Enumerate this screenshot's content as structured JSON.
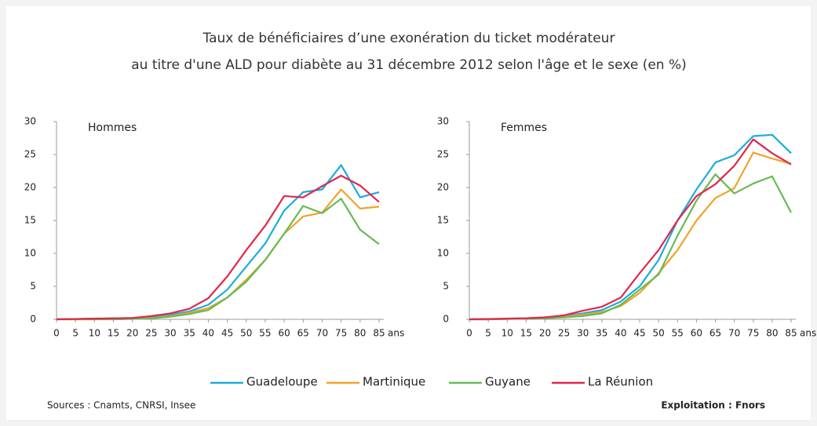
{
  "title": [
    "Taux de bénéficiaires d’une exonération du ticket modérateur",
    "au titre d'une ALD pour diabète au 31 décembre 2012 selon l'âge et le sexe (en %)"
  ],
  "sources": "Sources : Cnamts, CNRSI, Insee",
  "credit": "Exploitation : Fnors",
  "chart_data": [
    {
      "type": "line",
      "title": "Hommes",
      "xlabel": "ans",
      "x": [
        0,
        5,
        10,
        15,
        20,
        25,
        30,
        35,
        40,
        45,
        50,
        55,
        60,
        65,
        70,
        75,
        80,
        85
      ],
      "xlim": [
        0,
        85
      ],
      "xticks": [
        0,
        5,
        10,
        15,
        20,
        25,
        30,
        35,
        40,
        45,
        50,
        55,
        60,
        65,
        70,
        75,
        80,
        85
      ],
      "ylim": [
        0,
        30
      ],
      "yticks": [
        0,
        5,
        10,
        15,
        20,
        25,
        30
      ],
      "series": [
        {
          "name": "Guadeloupe",
          "color": "#19ade0",
          "values": [
            0,
            0.05,
            0.1,
            0.15,
            0.2,
            0.4,
            0.7,
            1.2,
            2.2,
            4.5,
            8,
            11.5,
            16.5,
            19.3,
            19.7,
            23.4,
            18.5,
            19.3
          ]
        },
        {
          "name": "Martinique",
          "color": "#f2a22a",
          "values": [
            0,
            0,
            0,
            0.05,
            0.1,
            0.2,
            0.5,
            1,
            1.7,
            3.3,
            6,
            9,
            13,
            15.6,
            16.2,
            19.7,
            16.8,
            17.1
          ]
        },
        {
          "name": "Guyane",
          "color": "#66bb55",
          "values": [
            0,
            0,
            0,
            0,
            0.05,
            0.15,
            0.4,
            0.8,
            1.4,
            3.3,
            5.7,
            9,
            13,
            17.2,
            16.1,
            18.3,
            13.6,
            11.4
          ]
        },
        {
          "name": "La Réunion",
          "color": "#e2264d",
          "values": [
            0,
            0.05,
            0.1,
            0.15,
            0.2,
            0.5,
            0.9,
            1.6,
            3.2,
            6.5,
            10.5,
            14.2,
            18.7,
            18.5,
            20.2,
            21.8,
            20.3,
            17.8
          ]
        }
      ]
    },
    {
      "type": "line",
      "title": "Femmes",
      "xlabel": "ans",
      "x": [
        0,
        5,
        10,
        15,
        20,
        25,
        30,
        35,
        40,
        45,
        50,
        55,
        60,
        65,
        70,
        75,
        80,
        85
      ],
      "xlim": [
        0,
        85
      ],
      "xticks": [
        0,
        5,
        10,
        15,
        20,
        25,
        30,
        35,
        40,
        45,
        50,
        55,
        60,
        65,
        70,
        75,
        80,
        85
      ],
      "ylim": [
        0,
        30
      ],
      "yticks": [
        0,
        5,
        10,
        15,
        20,
        25,
        30
      ],
      "series": [
        {
          "name": "Guadeloupe",
          "color": "#19ade0",
          "values": [
            0,
            0,
            0.1,
            0.15,
            0.3,
            0.5,
            0.9,
            1.4,
            2.7,
            5,
            9,
            15,
            19.7,
            23.8,
            24.9,
            27.8,
            28,
            25.2
          ]
        },
        {
          "name": "Martinique",
          "color": "#f2a22a",
          "values": [
            0,
            0,
            0.05,
            0.1,
            0.2,
            0.4,
            0.7,
            1.1,
            2,
            4,
            7,
            10.5,
            15,
            18.4,
            19.9,
            25.3,
            24.4,
            23.6
          ]
        },
        {
          "name": "Guyane",
          "color": "#66bb55",
          "values": [
            0,
            0,
            0.05,
            0.1,
            0.15,
            0.3,
            0.5,
            0.9,
            2.2,
            4.5,
            6.8,
            12.7,
            18,
            22,
            19.1,
            20.6,
            21.7,
            16.2
          ]
        },
        {
          "name": "La Réunion",
          "color": "#e2264d",
          "values": [
            0,
            0.05,
            0.1,
            0.15,
            0.3,
            0.6,
            1.3,
            1.9,
            3.3,
            7,
            10.5,
            15,
            18.7,
            20.5,
            23.3,
            27.3,
            25.2,
            23.5
          ]
        }
      ]
    }
  ]
}
